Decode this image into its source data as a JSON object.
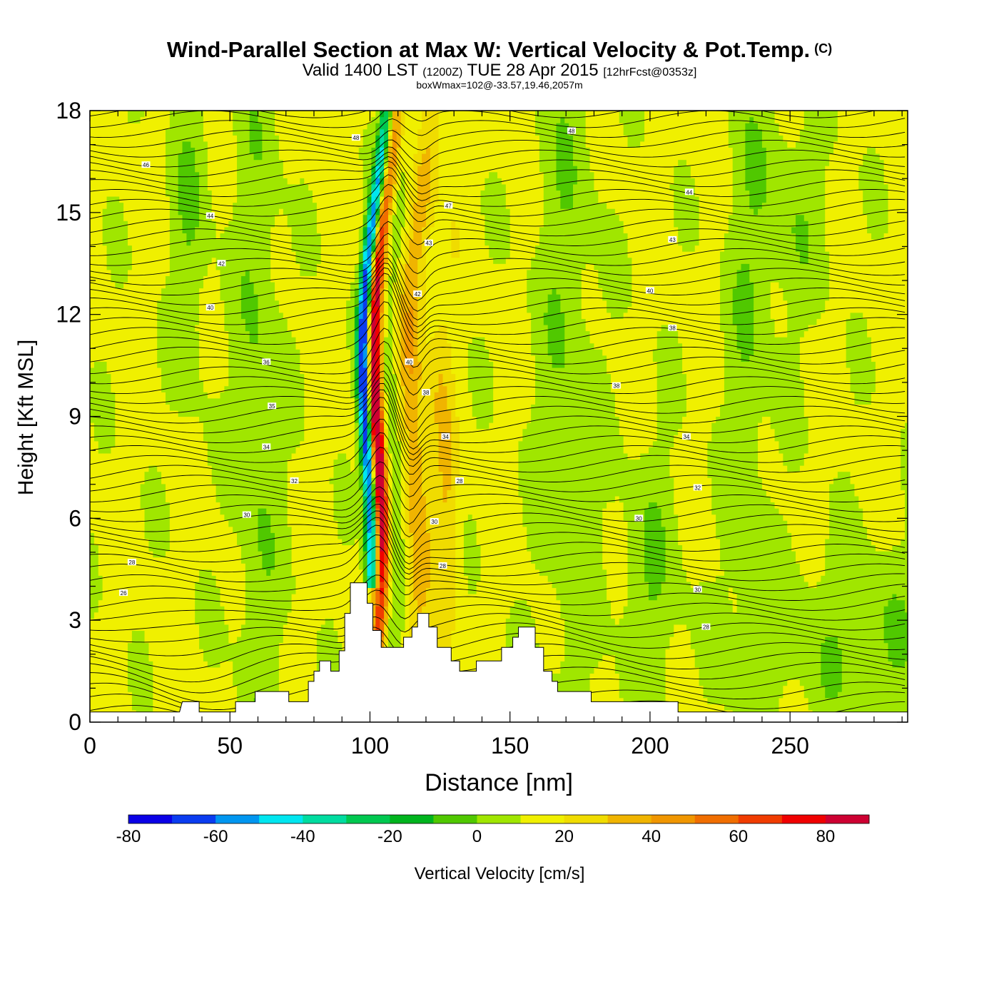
{
  "header": {
    "title": "Wind-Parallel Section at Max W: Vertical Velocity & Pot.Temp.",
    "copyright": "(C)",
    "valid_prefix": "Valid 1400 LST",
    "valid_utc": "(1200Z)",
    "valid_date": "TUE 28 Apr 2015",
    "forecast": "[12hrFcst@0353z]",
    "box_wmax": "boxWmax=102@-33.57,19.46,2057m"
  },
  "chart_data": {
    "type": "heatmap",
    "title": "Wind-Parallel Section at Max W: Vertical Velocity & Pot.Temp.",
    "xlabel": "Distance [nm]",
    "ylabel": "Height [Kft MSL]",
    "xlim": [
      0,
      292
    ],
    "ylim": [
      0,
      18
    ],
    "x_ticks": [
      0,
      50,
      100,
      150,
      200,
      250
    ],
    "y_ticks": [
      0,
      3,
      6,
      9,
      12,
      15,
      18
    ],
    "colorbar": {
      "label": "Vertical Velocity [cm/s]",
      "boundaries": [
        -90,
        -80,
        -70,
        -60,
        -50,
        -40,
        -30,
        -20,
        -10,
        0,
        10,
        20,
        30,
        40,
        50,
        60,
        70,
        80,
        90
      ],
      "tick_labels": [
        "-80",
        "-60",
        "-40",
        "-20",
        "0",
        "20",
        "40",
        "60",
        "80"
      ],
      "colors": [
        "#0a00e6",
        "#0a3cf0",
        "#0096f0",
        "#00e6f0",
        "#00dca0",
        "#00c850",
        "#00b41e",
        "#50c800",
        "#a0e600",
        "#f0f000",
        "#f0dc00",
        "#f0b400",
        "#f09600",
        "#f06e00",
        "#f03c00",
        "#f00000",
        "#cd0032"
      ]
    },
    "velocity_features": [
      {
        "kind": "updraft",
        "x": [
          96,
          108
        ],
        "y": [
          2.5,
          18
        ],
        "max": 90
      },
      {
        "kind": "downdraft",
        "x": [
          95,
          104
        ],
        "y": [
          4,
          18
        ],
        "min": -80
      },
      {
        "kind": "updraft",
        "x": [
          115,
          135
        ],
        "y": [
          2.5,
          18
        ],
        "max": 30
      }
    ],
    "terrain_kft": [
      [
        0,
        0.3
      ],
      [
        32,
        0.3
      ],
      [
        33,
        0.6
      ],
      [
        39,
        0.6
      ],
      [
        39,
        0.3
      ],
      [
        52,
        0.3
      ],
      [
        52,
        0.6
      ],
      [
        59,
        0.6
      ],
      [
        59,
        0.9
      ],
      [
        71,
        0.9
      ],
      [
        71,
        0.6
      ],
      [
        78,
        0.6
      ],
      [
        78,
        1.2
      ],
      [
        80,
        1.2
      ],
      [
        80,
        1.5
      ],
      [
        82,
        1.5
      ],
      [
        82,
        1.8
      ],
      [
        86,
        1.8
      ],
      [
        86,
        1.5
      ],
      [
        89,
        1.5
      ],
      [
        89,
        2.1
      ],
      [
        91,
        2.1
      ],
      [
        91,
        3.2
      ],
      [
        93,
        3.2
      ],
      [
        93,
        4.1
      ],
      [
        99,
        4.1
      ],
      [
        99,
        3.5
      ],
      [
        101,
        3.5
      ],
      [
        101,
        2.7
      ],
      [
        104,
        2.7
      ],
      [
        104,
        2.2
      ],
      [
        112,
        2.2
      ],
      [
        112,
        2.5
      ],
      [
        115,
        2.5
      ],
      [
        115,
        2.8
      ],
      [
        117,
        2.8
      ],
      [
        117,
        3.2
      ],
      [
        121,
        3.2
      ],
      [
        121,
        2.8
      ],
      [
        124,
        2.8
      ],
      [
        124,
        2.2
      ],
      [
        129,
        2.2
      ],
      [
        129,
        1.8
      ],
      [
        132,
        1.8
      ],
      [
        132,
        1.5
      ],
      [
        138,
        1.5
      ],
      [
        138,
        1.8
      ],
      [
        147,
        1.8
      ],
      [
        147,
        2.2
      ],
      [
        151,
        2.2
      ],
      [
        151,
        2.5
      ],
      [
        153,
        2.5
      ],
      [
        153,
        2.8
      ],
      [
        159,
        2.8
      ],
      [
        159,
        2.2
      ],
      [
        162,
        2.2
      ],
      [
        162,
        1.5
      ],
      [
        165,
        1.5
      ],
      [
        165,
        1.2
      ],
      [
        167,
        1.2
      ],
      [
        167,
        0.9
      ],
      [
        179,
        0.9
      ],
      [
        179,
        0.6
      ],
      [
        210,
        0.6
      ],
      [
        210,
        0.3
      ],
      [
        292,
        0.3
      ]
    ],
    "theta_contours": {
      "units": "K",
      "labels": [
        {
          "x": 12,
          "y": 3.8,
          "v": "26"
        },
        {
          "x": 15,
          "y": 4.7,
          "v": "28"
        },
        {
          "x": 56,
          "y": 6.1,
          "v": "30"
        },
        {
          "x": 73,
          "y": 7.1,
          "v": "32"
        },
        {
          "x": 63,
          "y": 8.1,
          "v": "34"
        },
        {
          "x": 65,
          "y": 9.3,
          "v": "35"
        },
        {
          "x": 63,
          "y": 10.6,
          "v": "36"
        },
        {
          "x": 43,
          "y": 12.2,
          "v": "40"
        },
        {
          "x": 47,
          "y": 13.5,
          "v": "42"
        },
        {
          "x": 43,
          "y": 14.9,
          "v": "44"
        },
        {
          "x": 20,
          "y": 16.4,
          "v": "46"
        },
        {
          "x": 95,
          "y": 17.2,
          "v": "48"
        },
        {
          "x": 172,
          "y": 17.4,
          "v": "48"
        },
        {
          "x": 128,
          "y": 15.2,
          "v": "47"
        },
        {
          "x": 121,
          "y": 14.1,
          "v": "43"
        },
        {
          "x": 117,
          "y": 12.6,
          "v": "42"
        },
        {
          "x": 114,
          "y": 10.6,
          "v": "40"
        },
        {
          "x": 120,
          "y": 9.7,
          "v": "38"
        },
        {
          "x": 127,
          "y": 8.4,
          "v": "34"
        },
        {
          "x": 132,
          "y": 7.1,
          "v": "28"
        },
        {
          "x": 123,
          "y": 5.9,
          "v": "30"
        },
        {
          "x": 126,
          "y": 4.6,
          "v": "28"
        },
        {
          "x": 214,
          "y": 15.6,
          "v": "44"
        },
        {
          "x": 208,
          "y": 14.2,
          "v": "43"
        },
        {
          "x": 200,
          "y": 12.7,
          "v": "40"
        },
        {
          "x": 208,
          "y": 11.6,
          "v": "38"
        },
        {
          "x": 188,
          "y": 9.9,
          "v": "38"
        },
        {
          "x": 213,
          "y": 8.4,
          "v": "34"
        },
        {
          "x": 217,
          "y": 6.9,
          "v": "32"
        },
        {
          "x": 196,
          "y": 6.0,
          "v": "30"
        },
        {
          "x": 217,
          "y": 3.9,
          "v": "30"
        },
        {
          "x": 220,
          "y": 2.8,
          "v": "28"
        }
      ]
    }
  }
}
